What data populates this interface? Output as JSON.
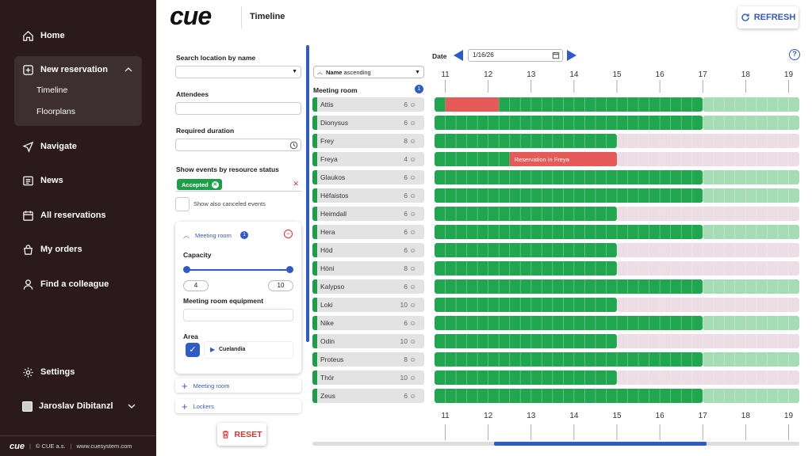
{
  "sidebar": {
    "items": [
      {
        "label": "Home",
        "icon": "home-icon"
      },
      {
        "label": "New reservation",
        "icon": "plus-square-icon"
      },
      {
        "label": "Navigate",
        "icon": "navigate-icon"
      },
      {
        "label": "News",
        "icon": "news-icon"
      },
      {
        "label": "All reservations",
        "icon": "calendar-icon"
      },
      {
        "label": "My orders",
        "icon": "cart-icon"
      },
      {
        "label": "Find a colleague",
        "icon": "person-icon"
      }
    ],
    "sub_items": [
      "Timeline",
      "Floorplans"
    ],
    "settings": "Settings",
    "user": "Jaroslav Dibitanzl",
    "footer": {
      "brand": "cue",
      "copyright": "© CUE a.s.",
      "url": "www.cuesystem.com"
    }
  },
  "header": {
    "logo": "cue",
    "title": "Timeline",
    "refresh": "REFRESH"
  },
  "filters": {
    "search_location_label": "Search location by name",
    "attendees_label": "Attendees",
    "duration_label": "Required duration",
    "status_label": "Show events by resource status",
    "status_chip": "Accepted",
    "show_canceled": "Show also canceled events",
    "meeting_room_title": "Meeting room",
    "meeting_room_count": "1",
    "capacity_label": "Capacity",
    "capacity_min": "4",
    "capacity_max": "10",
    "equipment_label": "Meeting room equipment",
    "area_label": "Area",
    "area_value": "Cuelandia",
    "add_meeting_room": "Meeting room",
    "add_lockers": "Lockers",
    "reset": "RESET"
  },
  "timeline": {
    "sort_label": "Name",
    "sort_dir": "ascending",
    "group_label": "Meeting room",
    "group_count": "1",
    "date_label": "Date",
    "date_value": "1/16/26",
    "hours": [
      "11",
      "12",
      "13",
      "14",
      "15",
      "16",
      "17",
      "18",
      "19"
    ],
    "reservation_label": "Reservation in Freya",
    "colors": {
      "free": "#1fa64e",
      "free_light": "#a6dcb3",
      "unavailable": "#eddde4",
      "reserved": "#e65a5a"
    },
    "rooms": [
      {
        "name": "Attis",
        "capacity": "6",
        "avail_until": 17,
        "busy": [
          [
            11,
            12.25
          ]
        ]
      },
      {
        "name": "Dionysus",
        "capacity": "6",
        "avail_until": 17,
        "busy": []
      },
      {
        "name": "Frey",
        "capacity": "8",
        "avail_until": 15,
        "busy": []
      },
      {
        "name": "Freya",
        "capacity": "4",
        "avail_until": 15,
        "busy": [
          [
            12.5,
            15
          ]
        ]
      },
      {
        "name": "Glaukos",
        "capacity": "6",
        "avail_until": 17,
        "busy": []
      },
      {
        "name": "Héfaistos",
        "capacity": "6",
        "avail_until": 17,
        "busy": []
      },
      {
        "name": "Heimdall",
        "capacity": "6",
        "avail_until": 15,
        "busy": []
      },
      {
        "name": "Hera",
        "capacity": "6",
        "avail_until": 17,
        "busy": []
      },
      {
        "name": "Höd",
        "capacity": "6",
        "avail_until": 15,
        "busy": []
      },
      {
        "name": "Höni",
        "capacity": "8",
        "avail_until": 15,
        "busy": []
      },
      {
        "name": "Kalypso",
        "capacity": "6",
        "avail_until": 17,
        "busy": []
      },
      {
        "name": "Loki",
        "capacity": "10",
        "avail_until": 15,
        "busy": []
      },
      {
        "name": "Nike",
        "capacity": "6",
        "avail_until": 17,
        "busy": []
      },
      {
        "name": "Odin",
        "capacity": "10",
        "avail_until": 15,
        "busy": []
      },
      {
        "name": "Proteus",
        "capacity": "8",
        "avail_until": 17,
        "busy": []
      },
      {
        "name": "Thór",
        "capacity": "10",
        "avail_until": 15,
        "busy": []
      },
      {
        "name": "Zeus",
        "capacity": "6",
        "avail_until": 17,
        "busy": []
      }
    ]
  }
}
